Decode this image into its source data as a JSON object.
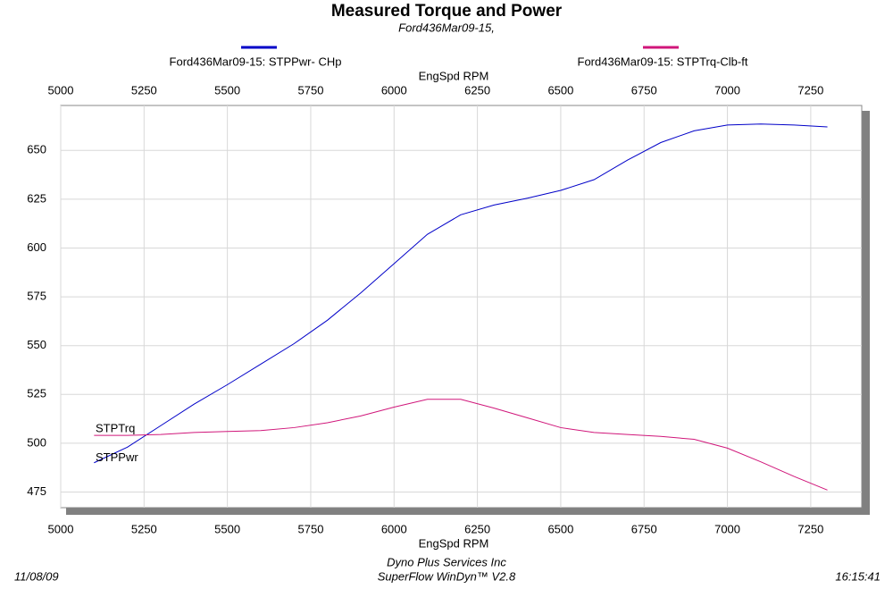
{
  "chart_data": {
    "type": "line",
    "title": "Measured Torque and Power",
    "subtitle": "Ford436Mar09-15,",
    "x_label": "EngSpd  RPM",
    "x": [
      5100,
      5200,
      5300,
      5400,
      5500,
      5600,
      5700,
      5800,
      5900,
      6000,
      6100,
      6200,
      6300,
      6400,
      6500,
      6600,
      6700,
      6800,
      6900,
      7000,
      7100,
      7200,
      7300
    ],
    "series": [
      {
        "name": "Ford436Mar09-15: STPPwr- CHp",
        "label": "STPPwr",
        "color": "#0000c8",
        "values": [
          490,
          498,
          509,
          520,
          530,
          540.5,
          551,
          563,
          577,
          592,
          607,
          617,
          622,
          625.5,
          629.5,
          635,
          645,
          654,
          660,
          663,
          663.5,
          663,
          662
        ]
      },
      {
        "name": "Ford436Mar09-15: STPTrq-Clb-ft",
        "label": "STPTrq",
        "color": "#d0167a",
        "values": [
          504,
          504,
          504.5,
          505.5,
          506,
          506.5,
          508,
          510.5,
          514,
          518.5,
          522.5,
          522.5,
          518,
          513,
          508,
          505.5,
          504.5,
          503.5,
          502,
          497.5,
          490.5,
          483,
          476
        ]
      }
    ],
    "xlim": [
      5000,
      7403
    ],
    "xticks": [
      5000,
      5250,
      5500,
      5750,
      6000,
      6250,
      6500,
      6750,
      7000,
      7250
    ],
    "ylim": [
      467,
      673
    ],
    "yticks": [
      475,
      500,
      525,
      550,
      575,
      600,
      625,
      650
    ],
    "grid": true,
    "footer": {
      "date": "11/08/09",
      "company": "Dyno Plus Services Inc",
      "software": "SuperFlow WinDyn™ V2.8",
      "time": "16:15:41"
    }
  }
}
